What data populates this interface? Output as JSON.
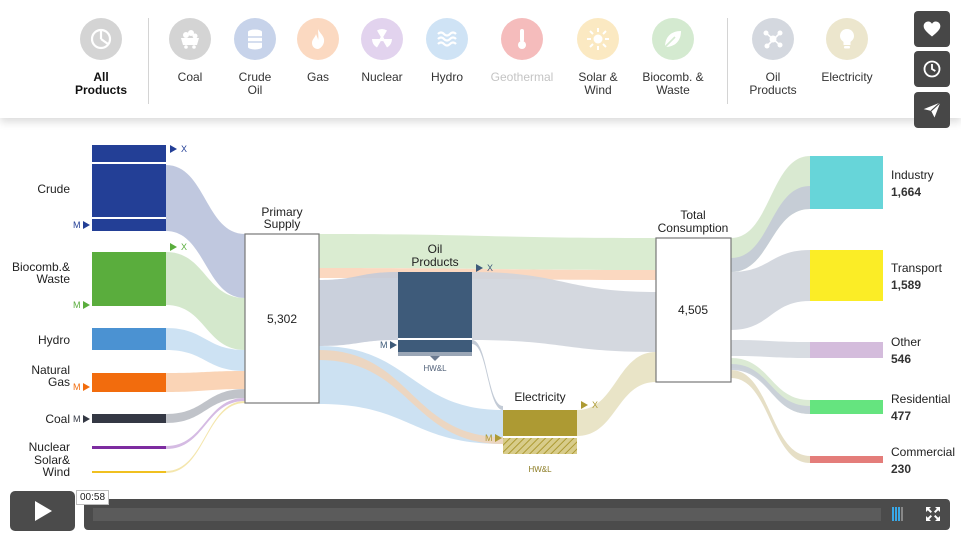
{
  "filters": [
    {
      "label": "All\nProducts",
      "icon": "pie-chart-icon",
      "bg": "#d4d4d4",
      "fg": "#ffffff",
      "active": true
    },
    {
      "label": "Coal",
      "icon": "coal-cart-icon",
      "bg": "#d4d4d4",
      "fg": "#ffffff"
    },
    {
      "label": "Crude\nOil",
      "icon": "oil-barrel-icon",
      "bg": "#c7d3ea",
      "fg": "#ffffff"
    },
    {
      "label": "Gas",
      "icon": "gas-flame-icon",
      "bg": "#fbd9c1",
      "fg": "#ffffff"
    },
    {
      "label": "Nuclear",
      "icon": "nuclear-icon",
      "bg": "#e2d3ee",
      "fg": "#ffffff"
    },
    {
      "label": "Hydro",
      "icon": "hydro-waves-icon",
      "bg": "#cfe3f5",
      "fg": "#ffffff"
    },
    {
      "label": "Geothermal",
      "icon": "thermometer-icon",
      "bg": "#f5bcbc",
      "fg": "#ffffff",
      "disabled": true
    },
    {
      "label": "Solar &\nWind",
      "icon": "sun-icon",
      "bg": "#fbe9c2",
      "fg": "#ffffff"
    },
    {
      "label": "Biocomb. &\nWaste",
      "icon": "leaf-icon",
      "bg": "#d4ead0",
      "fg": "#ffffff"
    },
    {
      "label": "Oil\nProducts",
      "icon": "molecule-icon",
      "bg": "#d4d8df",
      "fg": "#ffffff"
    },
    {
      "label": "Electricity",
      "icon": "lightbulb-icon",
      "bg": "#ece6cd",
      "fg": "#ffffff"
    }
  ],
  "side_buttons": [
    {
      "icon": "heart-icon"
    },
    {
      "icon": "clock-icon"
    },
    {
      "icon": "paper-plane-icon"
    }
  ],
  "player": {
    "time": "00:58",
    "progress": 0.0
  },
  "chart_data": {
    "type": "sankey",
    "nodes": {
      "primary_supply": {
        "label": "Primary\nSupply",
        "value": "5,302"
      },
      "oil_products": {
        "label": "Oil\nProducts",
        "marker_x": "X",
        "marker_m": "M",
        "loss": "HW&L"
      },
      "electricity": {
        "label": "Electricity",
        "marker_x": "X",
        "marker_m": "M",
        "loss": "HW&L"
      },
      "total_consumption": {
        "label": "Total\nConsumption",
        "value": "4,505"
      }
    },
    "sources": [
      {
        "label": "Crude",
        "color": "#233f96",
        "markers": [
          "X",
          "M"
        ]
      },
      {
        "label": "Biocomb.&\nWaste",
        "color": "#5aad3d",
        "markers": [
          "X",
          "M"
        ]
      },
      {
        "label": "Hydro",
        "color": "#4b92d2",
        "markers": []
      },
      {
        "label": "Natural\nGas",
        "color": "#f26c0d",
        "markers": [
          "M"
        ]
      },
      {
        "label": "Coal",
        "color": "#343844",
        "markers": [
          "M"
        ]
      },
      {
        "label": "Nuclear",
        "color": "#7d2ca0",
        "markers": []
      },
      {
        "label": "Solar&\nWind",
        "color": "#f0c020",
        "markers": []
      }
    ],
    "sectors": [
      {
        "label": "Industry",
        "value": "1,664",
        "color": "#67d5d9"
      },
      {
        "label": "Transport",
        "value": "1,589",
        "color": "#fbed26"
      },
      {
        "label": "Other",
        "value": "546",
        "color": "#d4bcdc"
      },
      {
        "label": "Residential",
        "value": "477",
        "color": "#65e47f"
      },
      {
        "label": "Commercial",
        "value": "230",
        "color": "#e47d7a"
      }
    ]
  }
}
